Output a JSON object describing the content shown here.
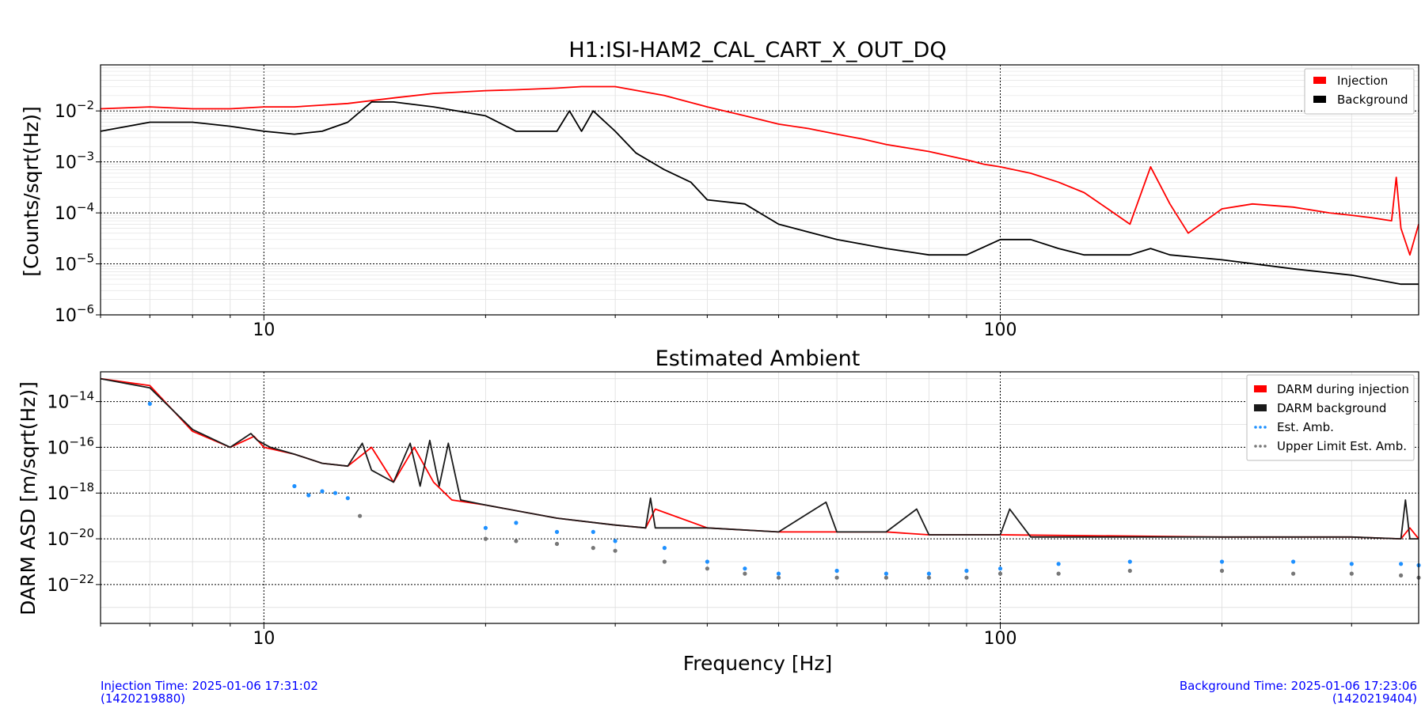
{
  "chart_data": [
    {
      "type": "line",
      "title": "H1:ISI-HAM2_CAL_CART_X_OUT_DQ",
      "xlabel": "",
      "ylabel": "[Counts/sqrt(Hz)]",
      "xscale": "log",
      "yscale": "log",
      "xlim": [
        6,
        370
      ],
      "ylim": [
        1e-06,
        0.08
      ],
      "x_ticks": [
        {
          "value": 10,
          "label": "10"
        },
        {
          "value": 100,
          "label": "100"
        }
      ],
      "y_ticks": [
        {
          "value": 0.01,
          "base": "10",
          "exp": "−2"
        },
        {
          "value": 0.001,
          "base": "10",
          "exp": "−3"
        },
        {
          "value": 0.0001,
          "base": "10",
          "exp": "−4"
        },
        {
          "value": 1e-05,
          "base": "10",
          "exp": "−5"
        },
        {
          "value": 1e-06,
          "base": "10",
          "exp": "−6"
        }
      ],
      "grid": true,
      "legend_position": "top-right",
      "series": [
        {
          "name": "Injection",
          "color": "#ff0000",
          "style": "line",
          "x": [
            6,
            7,
            8,
            9,
            10,
            11,
            12,
            13,
            15,
            17,
            20,
            22,
            25,
            27,
            30,
            35,
            40,
            45,
            50,
            55,
            60,
            65,
            70,
            80,
            90,
            95,
            100,
            110,
            120,
            130,
            140,
            150,
            160,
            170,
            180,
            200,
            220,
            250,
            280,
            300,
            320,
            340,
            345,
            350,
            360,
            370
          ],
          "y": [
            0.011,
            0.012,
            0.011,
            0.011,
            0.012,
            0.012,
            0.013,
            0.014,
            0.018,
            0.022,
            0.025,
            0.026,
            0.028,
            0.03,
            0.03,
            0.02,
            0.012,
            0.008,
            0.0055,
            0.0045,
            0.0035,
            0.0028,
            0.0022,
            0.0016,
            0.0011,
            0.0009,
            0.0008,
            0.0006,
            0.0004,
            0.00025,
            0.00012,
            6e-05,
            0.0008,
            0.00015,
            4e-05,
            0.00012,
            0.00015,
            0.00013,
            0.0001,
            9e-05,
            8e-05,
            7e-05,
            0.0005,
            5e-05,
            1.5e-05,
            6e-05
          ]
        },
        {
          "name": "Background",
          "color": "#000000",
          "style": "line",
          "x": [
            6,
            7,
            8,
            9,
            10,
            11,
            12,
            13,
            14,
            15,
            17,
            20,
            22,
            25,
            26,
            27,
            28,
            30,
            32,
            35,
            38,
            40,
            45,
            50,
            60,
            70,
            80,
            90,
            100,
            110,
            120,
            130,
            150,
            160,
            170,
            200,
            250,
            300,
            350,
            370
          ],
          "y": [
            0.004,
            0.006,
            0.006,
            0.005,
            0.004,
            0.0035,
            0.004,
            0.006,
            0.015,
            0.015,
            0.012,
            0.008,
            0.004,
            0.004,
            0.01,
            0.004,
            0.01,
            0.004,
            0.0015,
            0.0007,
            0.0004,
            0.00018,
            0.00015,
            6e-05,
            3e-05,
            2e-05,
            1.5e-05,
            1.5e-05,
            3e-05,
            3e-05,
            2e-05,
            1.5e-05,
            1.5e-05,
            2e-05,
            1.5e-05,
            1.2e-05,
            8e-06,
            6e-06,
            4e-06,
            4e-06
          ]
        }
      ]
    },
    {
      "type": "line",
      "title": "Estimated Ambient",
      "xlabel": "Frequency [Hz]",
      "ylabel": "DARM ASD [m/sqrt(Hz)]",
      "xscale": "log",
      "yscale": "log",
      "xlim": [
        6,
        370
      ],
      "ylim": [
        2e-24,
        2e-13
      ],
      "x_ticks": [
        {
          "value": 10,
          "label": "10"
        },
        {
          "value": 100,
          "label": "100"
        }
      ],
      "y_ticks": [
        {
          "value": 1e-14,
          "base": "10",
          "exp": "−14"
        },
        {
          "value": 1e-16,
          "base": "10",
          "exp": "−16"
        },
        {
          "value": 1e-18,
          "base": "10",
          "exp": "−18"
        },
        {
          "value": 1e-20,
          "base": "10",
          "exp": "−20"
        },
        {
          "value": 1e-22,
          "base": "10",
          "exp": "−22"
        }
      ],
      "grid": true,
      "legend_position": "top-right",
      "series": [
        {
          "name": "DARM during injection",
          "color": "#ff0000",
          "style": "line",
          "x": [
            6,
            7,
            8,
            9,
            9.7,
            10,
            11,
            12,
            13,
            14,
            15,
            16,
            17,
            18,
            20,
            25,
            30,
            33,
            34,
            40,
            50,
            60,
            70,
            80,
            100,
            200,
            300,
            350,
            360,
            370
          ],
          "y": [
            1e-13,
            5e-14,
            5e-16,
            1e-16,
            3e-16,
            1e-16,
            5e-17,
            2e-17,
            1.5e-17,
            1e-16,
            3e-18,
            1e-16,
            3e-18,
            5e-19,
            3e-19,
            8e-20,
            4e-20,
            3e-20,
            2e-19,
            3e-20,
            2e-20,
            2e-20,
            2e-20,
            1.5e-20,
            1.5e-20,
            1.2e-20,
            1.2e-20,
            1e-20,
            3e-20,
            1e-20
          ]
        },
        {
          "name": "DARM background",
          "color": "#1a1a1a",
          "style": "line",
          "x": [
            6,
            7,
            8,
            9,
            9.6,
            9.8,
            10.2,
            11,
            12,
            13,
            13.6,
            14,
            15,
            15.8,
            16.3,
            16.8,
            17.3,
            17.8,
            18.5,
            20,
            25,
            30,
            33,
            33.5,
            34,
            40,
            50,
            58,
            60,
            70,
            77,
            80,
            100,
            103,
            110,
            200,
            300,
            350,
            355,
            360,
            370
          ],
          "y": [
            1e-13,
            4e-14,
            6e-16,
            1e-16,
            4e-16,
            2e-16,
            1e-16,
            5e-17,
            2e-17,
            1.5e-17,
            1.5e-16,
            1e-17,
            3e-18,
            1.5e-16,
            2e-18,
            2e-16,
            2e-18,
            1.5e-16,
            5e-19,
            3e-19,
            8e-20,
            4e-20,
            3e-20,
            6e-19,
            3e-20,
            3e-20,
            2e-20,
            4e-19,
            2e-20,
            2e-20,
            2e-19,
            1.5e-20,
            1.5e-20,
            2e-19,
            1.2e-20,
            1.2e-20,
            1.2e-20,
            1e-20,
            5e-19,
            1e-20,
            1e-20
          ]
        },
        {
          "name": "Est. Amb.",
          "color": "#1e90ff",
          "style": "points",
          "x": [
            7,
            11,
            11.5,
            12,
            12.5,
            13,
            20,
            22,
            25,
            28,
            30,
            35,
            40,
            45,
            50,
            60,
            70,
            80,
            90,
            100,
            120,
            150,
            200,
            250,
            300,
            350,
            370
          ],
          "y": [
            8e-15,
            2e-18,
            8e-19,
            1.2e-18,
            1e-18,
            6e-19,
            3e-20,
            5e-20,
            2e-20,
            2e-20,
            8e-21,
            4e-21,
            1e-21,
            5e-22,
            3e-22,
            4e-22,
            3e-22,
            3e-22,
            4e-22,
            5e-22,
            8e-22,
            1e-21,
            1e-21,
            1e-21,
            8e-22,
            8e-22,
            7e-22
          ]
        },
        {
          "name": "Upper Limit Est. Amb.",
          "color": "#777777",
          "style": "points",
          "x": [
            13.5,
            20,
            22,
            25,
            28,
            30,
            35,
            40,
            45,
            50,
            60,
            70,
            80,
            90,
            100,
            120,
            150,
            200,
            250,
            300,
            350,
            370
          ],
          "y": [
            1e-19,
            1e-20,
            8e-21,
            6e-21,
            4e-21,
            3e-21,
            1e-21,
            5e-22,
            3e-22,
            2e-22,
            2e-22,
            2e-22,
            2e-22,
            2e-22,
            3e-22,
            3e-22,
            4e-22,
            4e-22,
            3e-22,
            3e-22,
            2.5e-22,
            2e-22
          ]
        }
      ]
    }
  ],
  "footer": {
    "injection_time": "Injection Time: 2025-01-06 17:31:02",
    "injection_gps": "(1420219880)",
    "background_time": "Background Time: 2025-01-06 17:23:06",
    "background_gps": "(1420219404)"
  }
}
